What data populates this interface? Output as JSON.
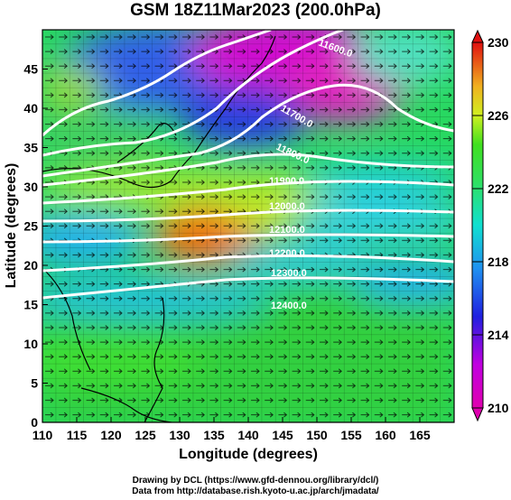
{
  "title": "GSM 18Z11Mar2023 (200.0hPa)",
  "xaxis": {
    "label": "Longitude (degrees)",
    "range": [
      110,
      170
    ],
    "ticks": [
      110,
      115,
      120,
      125,
      130,
      135,
      140,
      145,
      150,
      155,
      160,
      165
    ]
  },
  "yaxis": {
    "label": "Latitude  (degrees)",
    "range": [
      0,
      50
    ],
    "ticks": [
      0,
      5,
      10,
      15,
      20,
      25,
      30,
      35,
      40,
      45
    ]
  },
  "colorbar": {
    "min": 210,
    "max": 230,
    "ticks": [
      230,
      226,
      222,
      218,
      214,
      210
    ]
  },
  "contours": [
    {
      "label": "11600.0"
    },
    {
      "label": "11700.0"
    },
    {
      "label": "11800.0"
    },
    {
      "label": "11900.0"
    },
    {
      "label": "12000.0"
    },
    {
      "label": "12100.0"
    },
    {
      "label": "12200.0"
    },
    {
      "label": "12300.0"
    },
    {
      "label": "12400.0"
    }
  ],
  "credits": [
    "Drawing by DCL (https://www.gfd-dennou.org/library/dcl/)",
    "Data from http://database.rish.kyoto-u.ac.jp/arch/jmadata/"
  ],
  "colors": {
    "magenta": "#d100d1",
    "blue": "#2020e0",
    "cyan": "#10e0c0",
    "green": "#30d030",
    "yellow": "#e0f020",
    "orange": "#f08020",
    "red": "#e02020"
  }
}
